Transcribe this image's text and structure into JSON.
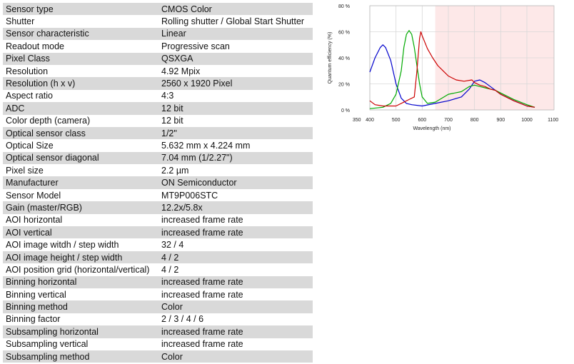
{
  "spec_rows": [
    {
      "label": "Sensor type",
      "value": "CMOS Color"
    },
    {
      "label": "Shutter",
      "value": "Rolling shutter / Global Start Shutter"
    },
    {
      "label": "Sensor characteristic",
      "value": "Linear"
    },
    {
      "label": "Readout mode",
      "value": "Progressive scan"
    },
    {
      "label": "Pixel Class",
      "value": "QSXGA"
    },
    {
      "label": "Resolution",
      "value": "4.92 Mpix"
    },
    {
      "label": "Resolution (h x v)",
      "value": "2560 x 1920 Pixel"
    },
    {
      "label": "Aspect ratio",
      "value": "4:3"
    },
    {
      "label": "ADC",
      "value": "12 bit"
    },
    {
      "label": "Color depth (camera)",
      "value": "12 bit"
    },
    {
      "label": "Optical sensor class",
      "value": "1/2\""
    },
    {
      "label": "Optical Size",
      "value": "5.632 mm x 4.224 mm"
    },
    {
      "label": "Optical sensor diagonal",
      "value": "7.04 mm (1/2.27\")"
    },
    {
      "label": "Pixel size",
      "value": "2.2 µm"
    },
    {
      "label": "Manufacturer",
      "value": "ON Semiconductor"
    },
    {
      "label": "Sensor Model",
      "value": "MT9P006STC"
    },
    {
      "label": "Gain (master/RGB)",
      "value": "12.2x/5.8x"
    },
    {
      "label": "AOI horizontal",
      "value": "increased frame rate"
    },
    {
      "label": "AOI vertical",
      "value": "increased frame rate"
    },
    {
      "label": "AOI image witdh / step width",
      "value": "32 / 4"
    },
    {
      "label": "AOI image height / step width",
      "value": "4 / 2"
    },
    {
      "label": "AOI position grid (horizontal/vertical)",
      "value": "4 / 2"
    },
    {
      "label": "Binning horizontal",
      "value": "increased frame rate"
    },
    {
      "label": "Binning vertical",
      "value": "increased frame rate"
    },
    {
      "label": "Binning method",
      "value": "Color"
    },
    {
      "label": "Binning factor",
      "value": "2 / 3 / 4 / 6"
    },
    {
      "label": "Subsampling horizontal",
      "value": "increased frame rate"
    },
    {
      "label": "Subsampling vertical",
      "value": "increased frame rate"
    },
    {
      "label": "Subsampling method",
      "value": "Color"
    }
  ],
  "chart_data": {
    "type": "line",
    "title": "",
    "xlabel": "Wavelength (nm)",
    "ylabel": "Quantum efficiency (%)",
    "xlim": [
      350,
      1100
    ],
    "ylim": [
      0,
      80
    ],
    "x_ticks": [
      "350",
      "400",
      "500",
      "600",
      "700",
      "800",
      "900",
      "1000",
      "1100"
    ],
    "y_ticks": [
      "0 %",
      "20 %",
      "40 %",
      "60 %",
      "80 %"
    ],
    "grid": true,
    "shaded_region": {
      "from": 650,
      "to": 1100,
      "color": "#fde8e8"
    },
    "series": [
      {
        "color": "#0000cc",
        "points": [
          [
            400,
            29
          ],
          [
            420,
            40
          ],
          [
            440,
            48
          ],
          [
            450,
            50
          ],
          [
            460,
            48
          ],
          [
            480,
            38
          ],
          [
            500,
            20
          ],
          [
            520,
            9
          ],
          [
            540,
            5
          ],
          [
            560,
            4
          ],
          [
            600,
            3
          ],
          [
            650,
            5
          ],
          [
            700,
            7
          ],
          [
            750,
            10
          ],
          [
            780,
            16
          ],
          [
            800,
            22
          ],
          [
            820,
            23
          ],
          [
            840,
            21
          ],
          [
            860,
            18
          ],
          [
            880,
            15
          ],
          [
            900,
            12
          ],
          [
            950,
            7
          ],
          [
            1000,
            3
          ],
          [
            1030,
            2
          ]
        ]
      },
      {
        "color": "#00aa00",
        "points": [
          [
            400,
            1
          ],
          [
            450,
            2
          ],
          [
            480,
            5
          ],
          [
            500,
            12
          ],
          [
            520,
            30
          ],
          [
            530,
            48
          ],
          [
            540,
            58
          ],
          [
            550,
            61
          ],
          [
            560,
            58
          ],
          [
            570,
            48
          ],
          [
            580,
            34
          ],
          [
            590,
            20
          ],
          [
            600,
            10
          ],
          [
            620,
            5
          ],
          [
            650,
            6
          ],
          [
            700,
            12
          ],
          [
            750,
            14
          ],
          [
            780,
            18
          ],
          [
            800,
            19
          ],
          [
            820,
            18
          ],
          [
            840,
            17
          ],
          [
            860,
            16
          ],
          [
            880,
            15
          ],
          [
            900,
            13
          ],
          [
            950,
            8
          ],
          [
            1000,
            4
          ],
          [
            1030,
            2
          ]
        ]
      },
      {
        "color": "#cc0000",
        "points": [
          [
            400,
            7
          ],
          [
            420,
            4
          ],
          [
            450,
            3
          ],
          [
            500,
            3
          ],
          [
            530,
            6
          ],
          [
            550,
            8
          ],
          [
            570,
            10
          ],
          [
            580,
            30
          ],
          [
            590,
            55
          ],
          [
            595,
            60
          ],
          [
            600,
            57
          ],
          [
            620,
            47
          ],
          [
            640,
            40
          ],
          [
            660,
            34
          ],
          [
            680,
            30
          ],
          [
            700,
            26
          ],
          [
            730,
            23
          ],
          [
            760,
            22
          ],
          [
            790,
            23
          ],
          [
            800,
            21
          ],
          [
            820,
            19
          ],
          [
            840,
            18
          ],
          [
            860,
            16
          ],
          [
            880,
            15
          ],
          [
            900,
            12
          ],
          [
            950,
            7
          ],
          [
            1000,
            3
          ],
          [
            1030,
            2
          ]
        ]
      }
    ]
  }
}
